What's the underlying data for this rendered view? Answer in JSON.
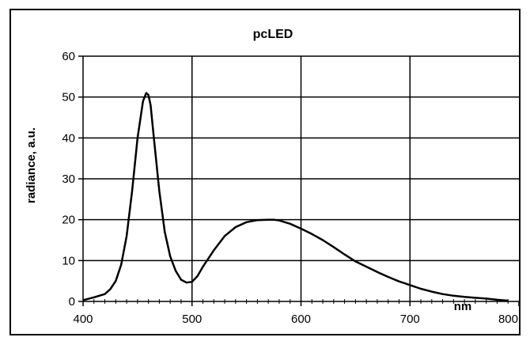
{
  "chart_data": {
    "type": "line",
    "title": "pcLED",
    "xlabel": "nm",
    "ylabel": "radiance, a.u.",
    "xlim": [
      400,
      800
    ],
    "ylim": [
      0,
      60
    ],
    "x_ticks": [
      400,
      500,
      600,
      700,
      800
    ],
    "y_ticks": [
      0,
      10,
      20,
      30,
      40,
      50,
      60
    ],
    "grid": "vertical and horizontal major gridlines",
    "legend": "none",
    "line_color": "#000000",
    "series": [
      {
        "x": [
          400,
          410,
          420,
          425,
          430,
          435,
          440,
          445,
          450,
          455,
          458,
          460,
          462,
          465,
          470,
          475,
          480,
          485,
          490,
          495,
          500,
          505,
          510,
          520,
          530,
          540,
          550,
          560,
          570,
          575,
          580,
          590,
          600,
          610,
          620,
          630,
          640,
          650,
          660,
          670,
          680,
          690,
          700,
          710,
          720,
          730,
          740,
          750,
          760,
          770,
          780,
          790
        ],
        "values": [
          0.3,
          1,
          1.8,
          3,
          5,
          9,
          16,
          27,
          40,
          49,
          51,
          50.5,
          48,
          40,
          27,
          17,
          11,
          7.5,
          5.3,
          4.6,
          4.8,
          6.2,
          8.5,
          12.5,
          16,
          18.2,
          19.4,
          19.9,
          20,
          20,
          19.8,
          19,
          17.8,
          16.5,
          15,
          13.3,
          11.5,
          9.8,
          8.5,
          7.2,
          6,
          4.9,
          4,
          3.1,
          2.4,
          1.8,
          1.4,
          1.1,
          0.9,
          0.7,
          0.4,
          0.2
        ]
      }
    ]
  }
}
